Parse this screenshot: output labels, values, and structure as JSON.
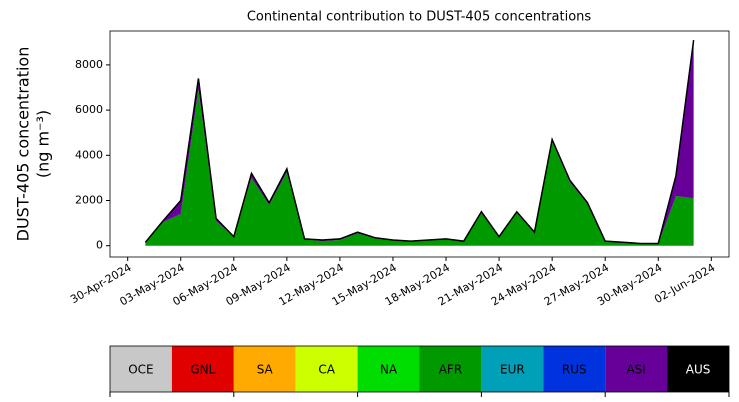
{
  "chart_data": {
    "type": "stacked_area",
    "title": "Continental contribution to DUST-405 concentrations",
    "ylabel": [
      "DUST-405 concentration",
      "(ng m⁻³)"
    ],
    "x": [
      "2024-05-01",
      "2024-05-02",
      "2024-05-03",
      "2024-05-04",
      "2024-05-05",
      "2024-05-06",
      "2024-05-07",
      "2024-05-08",
      "2024-05-09",
      "2024-05-10",
      "2024-05-11",
      "2024-05-12",
      "2024-05-13",
      "2024-05-14",
      "2024-05-15",
      "2024-05-16",
      "2024-05-17",
      "2024-05-18",
      "2024-05-19",
      "2024-05-20",
      "2024-05-21",
      "2024-05-22",
      "2024-05-23",
      "2024-05-24",
      "2024-05-25",
      "2024-05-26",
      "2024-05-27",
      "2024-05-28",
      "2024-05-29",
      "2024-05-30",
      "2024-05-31",
      "2024-06-01"
    ],
    "series": [
      {
        "name": "AFR",
        "color": "#009900",
        "values": [
          130,
          1050,
          1400,
          6900,
          1100,
          380,
          3000,
          1800,
          3250,
          280,
          200,
          250,
          540,
          320,
          230,
          180,
          230,
          270,
          180,
          1450,
          370,
          1450,
          570,
          4600,
          2800,
          1840,
          180,
          130,
          80,
          70,
          2200,
          2100
        ]
      },
      {
        "name": "ASI",
        "color": "#660099",
        "values": [
          20,
          50,
          600,
          500,
          100,
          20,
          200,
          100,
          150,
          20,
          50,
          50,
          60,
          30,
          20,
          20,
          20,
          30,
          20,
          50,
          30,
          50,
          30,
          100,
          100,
          60,
          20,
          20,
          20,
          30,
          900,
          7000
        ]
      }
    ],
    "xlim": [
      "2024-04-29",
      "2024-06-03"
    ],
    "xticks": [
      {
        "value": "2024-04-30",
        "label": "30-Apr-2024"
      },
      {
        "value": "2024-05-03",
        "label": "03-May-2024"
      },
      {
        "value": "2024-05-06",
        "label": "06-May-2024"
      },
      {
        "value": "2024-05-09",
        "label": "09-May-2024"
      },
      {
        "value": "2024-05-12",
        "label": "12-May-2024"
      },
      {
        "value": "2024-05-15",
        "label": "15-May-2024"
      },
      {
        "value": "2024-05-18",
        "label": "18-May-2024"
      },
      {
        "value": "2024-05-21",
        "label": "21-May-2024"
      },
      {
        "value": "2024-05-24",
        "label": "24-May-2024"
      },
      {
        "value": "2024-05-27",
        "label": "27-May-2024"
      },
      {
        "value": "2024-05-30",
        "label": "30-May-2024"
      },
      {
        "value": "2024-06-02",
        "label": "02-Jun-2024"
      }
    ],
    "ylim": [
      -500,
      9500
    ],
    "yticks": [
      0,
      2000,
      4000,
      6000,
      8000
    ],
    "outline_color": "#000000",
    "legend_items": [
      {
        "name": "OCE",
        "color": "#c8c8c8"
      },
      {
        "name": "GNL",
        "color": "#e00000"
      },
      {
        "name": "SA",
        "color": "#ffaa00"
      },
      {
        "name": "CA",
        "color": "#ccff00"
      },
      {
        "name": "NA",
        "color": "#00dd00"
      },
      {
        "name": "AFR",
        "color": "#009900"
      },
      {
        "name": "EUR",
        "color": "#00a0b8"
      },
      {
        "name": "RUS",
        "color": "#0033dd"
      },
      {
        "name": "ASI",
        "color": "#660099"
      },
      {
        "name": "AUS",
        "color": "#000000"
      }
    ]
  }
}
